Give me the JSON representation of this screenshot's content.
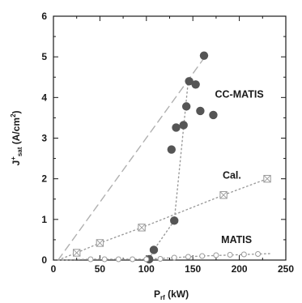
{
  "chart_data": {
    "type": "scatter",
    "xlabel": {
      "main": "P",
      "sub": "rf",
      "unit": " (kW)"
    },
    "ylabel": {
      "main": "J",
      "sup": "+",
      "sub": "sat",
      "unit": " (A/cm",
      "unit_sup": "2",
      "unit_end": ")"
    },
    "xlim": [
      0,
      250
    ],
    "ylim": [
      0,
      6
    ],
    "xticks": [
      "0",
      "50",
      "100",
      "150",
      "200",
      "250"
    ],
    "yticks": [
      "0",
      "1",
      "2",
      "3",
      "4",
      "5",
      "6"
    ],
    "grid": false,
    "series": [
      {
        "name": "CC-MATIS",
        "marker": "filled-circle",
        "color": "#555555",
        "points": [
          [
            103,
            0.02
          ],
          [
            108,
            0.25
          ],
          [
            130,
            0.97
          ],
          [
            127,
            2.72
          ],
          [
            132,
            3.26
          ],
          [
            140,
            3.32
          ],
          [
            143,
            3.78
          ],
          [
            146,
            4.4
          ],
          [
            153,
            4.32
          ],
          [
            158,
            3.67
          ],
          [
            162,
            5.03
          ],
          [
            172,
            3.57
          ]
        ]
      },
      {
        "name": "Cal.",
        "marker": "crossed-square",
        "color": "#9a9a9a",
        "points": [
          [
            25,
            0.18
          ],
          [
            50,
            0.42
          ],
          [
            95,
            0.8
          ],
          [
            183,
            1.6
          ],
          [
            230,
            2.0
          ]
        ]
      },
      {
        "name": "MATIS",
        "marker": "open-circle",
        "color": "#9a9a9a",
        "points": [
          [
            40,
            0.02
          ],
          [
            55,
            0.02
          ],
          [
            70,
            0.02
          ],
          [
            85,
            0.02
          ],
          [
            100,
            0.02
          ],
          [
            115,
            0.03
          ],
          [
            130,
            0.06
          ],
          [
            145,
            0.08
          ],
          [
            160,
            0.1
          ],
          [
            175,
            0.12
          ],
          [
            190,
            0.13
          ],
          [
            205,
            0.14
          ],
          [
            220,
            0.15
          ]
        ]
      }
    ],
    "lines": [
      {
        "style": "dashed",
        "color": "#b0b0b0",
        "from": [
          5,
          0.0
        ],
        "to": [
          163,
          5.0
        ]
      },
      {
        "style": "dotted",
        "color": "#9a9a9a",
        "points": [
          [
            103,
            0.02
          ],
          [
            108,
            0.25
          ],
          [
            130,
            0.97
          ],
          [
            145,
            4.4
          ]
        ]
      },
      {
        "style": "dotted",
        "color": "#9a9a9a",
        "points": [
          [
            5,
            0.0
          ],
          [
            25,
            0.18
          ],
          [
            50,
            0.42
          ],
          [
            95,
            0.8
          ],
          [
            183,
            1.6
          ],
          [
            230,
            2.0
          ]
        ]
      },
      {
        "style": "dotted",
        "color": "#9a9a9a",
        "points": [
          [
            5,
            0.0
          ],
          [
            40,
            0.02
          ],
          [
            100,
            0.02
          ],
          [
            160,
            0.1
          ],
          [
            235,
            0.16
          ]
        ]
      }
    ],
    "annotations": [
      {
        "text": "CC-MATIS",
        "at": [
          200,
          4.0
        ]
      },
      {
        "text": "Cal.",
        "at": [
          192,
          2.0
        ]
      },
      {
        "text": "MATIS",
        "at": [
          197,
          0.42
        ]
      }
    ]
  }
}
